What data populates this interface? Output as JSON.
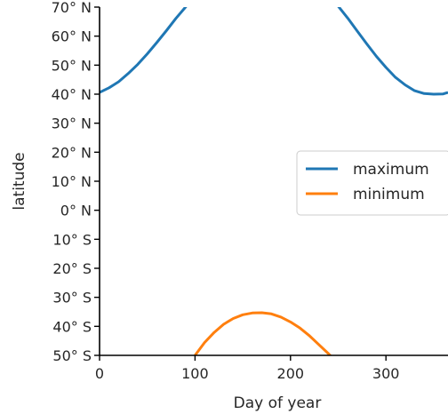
{
  "chart_data": {
    "type": "line",
    "title": "",
    "xlabel": "Day of year",
    "ylabel": "latitude",
    "xlim": [
      0,
      365
    ],
    "ylim": [
      -50,
      70
    ],
    "x_ticks": [
      {
        "value": 0,
        "label": "0"
      },
      {
        "value": 100,
        "label": "100"
      },
      {
        "value": 200,
        "label": "200"
      },
      {
        "value": 300,
        "label": "300"
      }
    ],
    "y_ticks": [
      {
        "value": 70,
        "label": "70° N"
      },
      {
        "value": 60,
        "label": "60° N"
      },
      {
        "value": 50,
        "label": "50° N"
      },
      {
        "value": 40,
        "label": "40° N"
      },
      {
        "value": 30,
        "label": "30° N"
      },
      {
        "value": 20,
        "label": "20° N"
      },
      {
        "value": 10,
        "label": "10° N"
      },
      {
        "value": 0,
        "label": "0° N"
      },
      {
        "value": -10,
        "label": "10° S"
      },
      {
        "value": -20,
        "label": "20° S"
      },
      {
        "value": -30,
        "label": "30° S"
      },
      {
        "value": -40,
        "label": "40° S"
      },
      {
        "value": -50,
        "label": "50° S"
      }
    ],
    "grid": false,
    "legend_position": "right",
    "series": [
      {
        "name": "maximum",
        "color": "#1f77b4",
        "x": [
          0,
          10,
          20,
          30,
          40,
          50,
          60,
          70,
          80,
          90,
          95,
          100,
          105,
          240,
          245,
          250,
          260,
          270,
          280,
          290,
          300,
          310,
          320,
          330,
          340,
          350,
          360,
          365
        ],
        "y": [
          40.6,
          42.2,
          44.3,
          47.1,
          50.3,
          53.9,
          57.8,
          61.9,
          66.1,
          70.0,
          72.0,
          74.0,
          76.0,
          75.0,
          72.7,
          70.3,
          66.2,
          61.7,
          57.3,
          53.0,
          49.2,
          45.8,
          43.2,
          41.2,
          40.2,
          40.0,
          40.1,
          40.6
        ]
      },
      {
        "name": "minimum",
        "color": "#ff7f0e",
        "x": [
          100,
          110,
          120,
          130,
          140,
          150,
          160,
          170,
          180,
          190,
          200,
          210,
          220,
          230,
          240,
          244
        ],
        "y": [
          -50.0,
          -45.6,
          -42.1,
          -39.3,
          -37.3,
          -36.0,
          -35.4,
          -35.3,
          -35.7,
          -36.8,
          -38.5,
          -40.6,
          -43.3,
          -46.4,
          -49.5,
          -50.8
        ]
      }
    ]
  }
}
